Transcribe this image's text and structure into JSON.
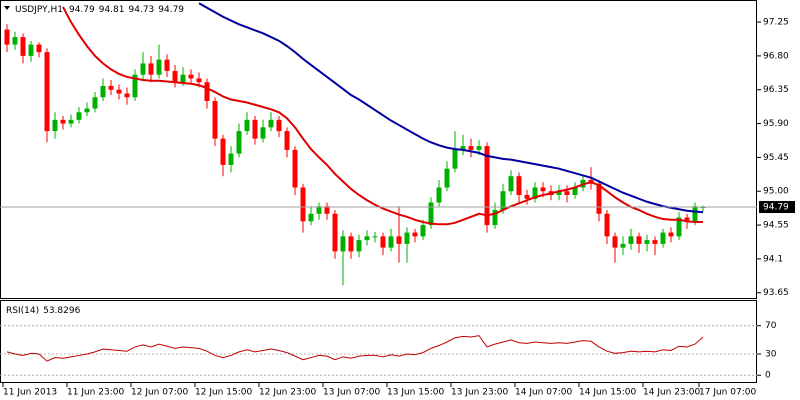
{
  "chart_data": {
    "type": "candlestick",
    "symbol": "USDJPY,H1",
    "categories": [
      "11 Jun 2013",
      null,
      null,
      null,
      null,
      null,
      null,
      null,
      "11 Jun 23:00",
      null,
      null,
      null,
      null,
      null,
      null,
      null,
      "12 Jun 07:00",
      null,
      null,
      null,
      null,
      null,
      null,
      null,
      "12 Jun 15:00",
      null,
      null,
      null,
      null,
      null,
      null,
      null,
      "12 Jun 23:00",
      null,
      null,
      null,
      null,
      null,
      null,
      null,
      "13 Jun 07:00",
      null,
      null,
      null,
      null,
      null,
      null,
      null,
      "13 Jun 15:00",
      null,
      null,
      null,
      null,
      null,
      null,
      null,
      "13 Jun 23:00",
      null,
      null,
      null,
      null,
      null,
      null,
      null,
      "14 Jun 07:00",
      null,
      null,
      null,
      null,
      null,
      null,
      null,
      "14 Jun 15:00",
      null,
      null,
      null,
      null,
      null,
      null,
      null,
      "14 Jun 23:00",
      null,
      null,
      null,
      null,
      null,
      null,
      "17 Jun 07:00"
    ],
    "open": [
      97.15,
      96.95,
      97.05,
      96.8,
      96.95,
      96.85,
      95.8,
      95.95,
      95.9,
      95.95,
      96.05,
      96.1,
      96.25,
      96.4,
      96.35,
      96.3,
      96.25,
      96.55,
      96.7,
      96.55,
      96.75,
      96.6,
      96.45,
      96.55,
      96.5,
      96.45,
      96.2,
      95.7,
      95.35,
      95.5,
      95.8,
      95.95,
      95.7,
      95.85,
      95.95,
      95.8,
      95.55,
      95.05,
      94.6,
      94.7,
      94.8,
      94.7,
      94.2,
      94.4,
      94.2,
      94.35,
      94.4,
      94.4,
      94.25,
      94.4,
      94.3,
      94.45,
      94.4,
      94.55,
      94.85,
      95.05,
      95.3,
      95.55,
      95.6,
      95.55,
      95.6,
      94.55,
      94.75,
      95.0,
      95.2,
      94.95,
      94.9,
      95.05,
      95.0,
      94.95,
      95.0,
      94.95,
      95.05,
      95.15,
      95.1,
      94.7,
      94.4,
      94.25,
      94.3,
      94.4,
      94.3,
      94.35,
      94.3,
      94.45,
      94.4,
      94.65,
      94.6,
      94.79
    ],
    "high": [
      97.22,
      97.12,
      97.1,
      97.0,
      96.98,
      96.9,
      96.05,
      96.0,
      96.02,
      96.12,
      96.18,
      96.32,
      96.5,
      96.48,
      96.42,
      96.38,
      96.62,
      96.85,
      96.8,
      96.95,
      96.82,
      96.68,
      96.65,
      96.62,
      96.58,
      96.5,
      96.25,
      95.75,
      95.6,
      95.9,
      96.05,
      96.0,
      95.95,
      96.05,
      96.0,
      95.85,
      95.6,
      95.1,
      94.8,
      94.85,
      94.85,
      94.75,
      94.48,
      94.45,
      94.42,
      94.48,
      94.46,
      94.45,
      94.5,
      94.8,
      94.52,
      94.5,
      94.62,
      94.92,
      95.15,
      95.4,
      95.8,
      95.75,
      95.7,
      95.68,
      95.65,
      94.85,
      95.1,
      95.28,
      95.25,
      95.02,
      95.12,
      95.12,
      95.08,
      95.08,
      95.08,
      95.12,
      95.22,
      95.32,
      95.15,
      94.75,
      94.45,
      94.4,
      94.5,
      94.45,
      94.42,
      94.4,
      94.5,
      94.52,
      94.72,
      94.7,
      94.85,
      94.81
    ],
    "low": [
      96.85,
      96.88,
      96.7,
      96.72,
      96.78,
      95.65,
      95.7,
      95.82,
      95.85,
      95.9,
      96.0,
      96.05,
      96.2,
      96.28,
      96.22,
      96.15,
      96.2,
      96.48,
      96.45,
      96.5,
      96.52,
      96.38,
      96.4,
      96.42,
      96.38,
      96.1,
      95.6,
      95.2,
      95.25,
      95.45,
      95.75,
      95.62,
      95.65,
      95.8,
      95.72,
      95.45,
      94.95,
      94.45,
      94.55,
      94.62,
      94.62,
      94.1,
      93.75,
      94.1,
      94.12,
      94.28,
      94.32,
      94.15,
      94.2,
      94.05,
      94.05,
      94.32,
      94.35,
      94.5,
      94.8,
      95.0,
      95.25,
      95.48,
      95.45,
      95.48,
      94.45,
      94.5,
      94.7,
      94.95,
      94.85,
      94.82,
      94.85,
      94.92,
      94.88,
      94.88,
      94.85,
      94.9,
      95.0,
      95.02,
      94.6,
      94.3,
      94.05,
      94.15,
      94.22,
      94.18,
      94.2,
      94.15,
      94.25,
      94.32,
      94.35,
      94.5,
      94.55,
      94.73
    ],
    "close": [
      96.95,
      97.05,
      96.8,
      96.95,
      96.85,
      95.8,
      95.95,
      95.9,
      95.95,
      96.05,
      96.1,
      96.25,
      96.4,
      96.35,
      96.3,
      96.25,
      96.55,
      96.7,
      96.55,
      96.75,
      96.6,
      96.45,
      96.55,
      96.5,
      96.45,
      96.2,
      95.7,
      95.35,
      95.5,
      95.8,
      95.95,
      95.7,
      95.85,
      95.95,
      95.8,
      95.55,
      95.05,
      94.6,
      94.7,
      94.8,
      94.7,
      94.2,
      94.4,
      94.2,
      94.35,
      94.4,
      94.4,
      94.25,
      94.4,
      94.3,
      94.45,
      94.4,
      94.55,
      94.85,
      95.05,
      95.3,
      95.55,
      95.6,
      95.55,
      95.6,
      94.55,
      94.75,
      95.0,
      95.2,
      94.95,
      94.9,
      95.05,
      95.0,
      94.95,
      95.0,
      94.95,
      95.05,
      95.15,
      95.1,
      94.7,
      94.4,
      94.25,
      94.3,
      94.4,
      94.3,
      94.35,
      94.3,
      94.45,
      94.4,
      94.65,
      94.6,
      94.8,
      94.79
    ],
    "up_color": "#00b000",
    "down_color": "#ff0000",
    "series": [
      {
        "color": "#0000a0",
        "values": [
          null,
          null,
          null,
          null,
          null,
          null,
          null,
          null,
          null,
          null,
          null,
          null,
          null,
          null,
          null,
          null,
          null,
          null,
          null,
          null,
          null,
          null,
          null,
          null,
          97.5,
          97.44,
          97.38,
          97.32,
          97.27,
          97.22,
          97.18,
          97.14,
          97.1,
          97.05,
          97.0,
          96.93,
          96.85,
          96.76,
          96.68,
          96.6,
          96.52,
          96.44,
          96.36,
          96.28,
          96.22,
          96.15,
          96.08,
          96.01,
          95.94,
          95.88,
          95.82,
          95.76,
          95.7,
          95.65,
          95.61,
          95.58,
          95.56,
          95.55,
          95.53,
          95.51,
          95.47,
          95.45,
          95.43,
          95.42,
          95.4,
          95.38,
          95.36,
          95.34,
          95.32,
          95.3,
          95.27,
          95.24,
          95.21,
          95.18,
          95.13,
          95.08,
          95.03,
          94.98,
          94.94,
          94.9,
          94.86,
          94.83,
          94.8,
          94.78,
          94.76,
          94.74,
          94.73,
          94.72
        ]
      },
      {
        "color": "#e00000",
        "values": [
          null,
          null,
          null,
          null,
          null,
          null,
          null,
          97.45,
          97.25,
          97.08,
          96.93,
          96.8,
          96.7,
          96.62,
          96.56,
          96.52,
          96.5,
          96.48,
          96.47,
          96.47,
          96.46,
          96.45,
          96.44,
          96.43,
          96.41,
          96.37,
          96.32,
          96.26,
          96.22,
          96.2,
          96.18,
          96.15,
          96.12,
          96.09,
          96.05,
          95.97,
          95.85,
          95.7,
          95.56,
          95.45,
          95.35,
          95.23,
          95.13,
          95.03,
          94.95,
          94.88,
          94.82,
          94.77,
          94.73,
          94.69,
          94.66,
          94.62,
          94.59,
          94.57,
          94.56,
          94.56,
          94.58,
          94.62,
          94.66,
          94.7,
          94.68,
          94.7,
          94.75,
          94.8,
          94.84,
          94.88,
          94.92,
          94.95,
          94.97,
          95.0,
          95.02,
          95.05,
          95.09,
          95.12,
          95.08,
          95.0,
          94.92,
          94.85,
          94.79,
          94.75,
          94.7,
          94.66,
          94.63,
          94.62,
          94.62,
          94.6,
          94.59,
          94.59
        ]
      }
    ],
    "ylim": [
      93.58,
      97.53
    ],
    "yticks": [
      97.25,
      {
        "value": 96.8,
        "label": "96.80"
      },
      96.35,
      {
        "value": 95.9,
        "label": "95.90"
      },
      95.45,
      {
        "value": 95.0,
        "label": "95.00"
      },
      94.55,
      94.1,
      93.65
    ],
    "rsi": {
      "type": "line",
      "label": "RSI(14)",
      "color": "#c00000",
      "values": [
        33,
        30,
        28,
        31,
        30,
        20,
        25,
        24,
        26,
        28,
        30,
        33,
        37,
        36,
        35,
        34,
        40,
        43,
        40,
        44,
        41,
        38,
        40,
        39,
        38,
        34,
        28,
        25,
        28,
        33,
        36,
        33,
        35,
        37,
        35,
        32,
        27,
        22,
        25,
        28,
        27,
        22,
        26,
        24,
        27,
        28,
        28,
        26,
        29,
        27,
        30,
        29,
        32,
        38,
        42,
        47,
        53,
        55,
        54,
        56,
        40,
        44,
        47,
        50,
        46,
        45,
        47,
        46,
        45,
        46,
        45,
        47,
        49,
        48,
        40,
        34,
        31,
        32,
        34,
        33,
        34,
        33,
        36,
        35,
        41,
        40,
        44,
        53.8296
      ],
      "ylim": [
        -11,
        105
      ],
      "yticks": [
        70,
        30,
        0
      ],
      "grid": true
    }
  }
}
